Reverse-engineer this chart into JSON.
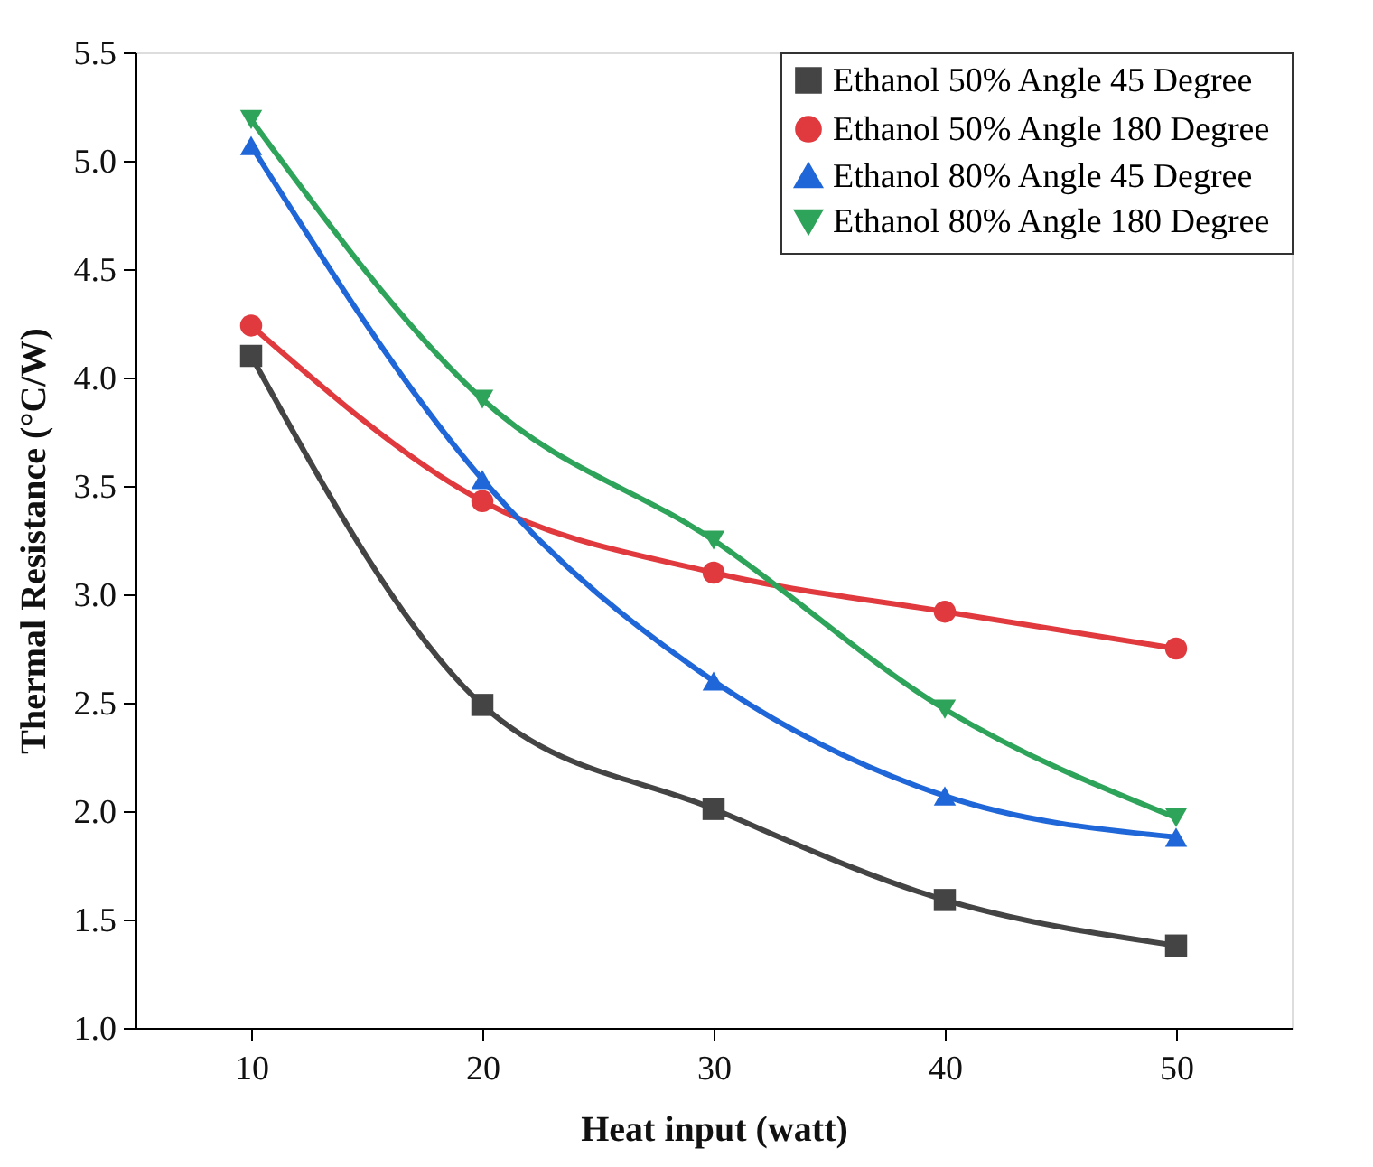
{
  "chart_data": {
    "type": "line",
    "xlabel": "Heat input (watt)",
    "ylabel": "Thermal Resistance (°C/W)",
    "x": [
      10,
      20,
      30,
      40,
      50
    ],
    "xlim": [
      5,
      55
    ],
    "xticks": [
      10,
      20,
      30,
      40,
      50
    ],
    "ylim": [
      1.0,
      5.5
    ],
    "yticks": [
      {
        "value": 1.0,
        "label": "1.0"
      },
      {
        "value": 1.5,
        "label": "1.5"
      },
      {
        "value": 2.0,
        "label": "2.0"
      },
      {
        "value": 2.5,
        "label": "2.5"
      },
      {
        "value": 3.0,
        "label": "3.0"
      },
      {
        "value": 3.5,
        "label": "3.5"
      },
      {
        "value": 4.0,
        "label": "4.0"
      },
      {
        "value": 4.5,
        "label": "4.5"
      },
      {
        "value": 5.0,
        "label": "5.0"
      },
      {
        "value": 5.5,
        "label": "5.5"
      }
    ],
    "grid": false,
    "legend": "top right",
    "line_style": "solid",
    "series": [
      {
        "name": "Ethanol  50% Angle 45 Degree",
        "color": "#444444",
        "marker": "square",
        "values": [
          4.1,
          2.49,
          2.01,
          1.59,
          1.38
        ]
      },
      {
        "name": "Ethanol  50% Angle 180 Degree",
        "color": "#e0393e",
        "marker": "circle",
        "values": [
          4.24,
          3.43,
          3.1,
          2.92,
          2.75
        ]
      },
      {
        "name": "Ethanol  80% Angle 45 Degree",
        "color": "#1f66d8",
        "marker": "triangle",
        "values": [
          5.07,
          3.53,
          2.6,
          2.07,
          1.88
        ]
      },
      {
        "name": "Ethanol  80% Angle 180 Degree",
        "color": "#2ea35a",
        "marker": "triangle_down",
        "values": [
          5.19,
          3.9,
          3.25,
          2.47,
          1.97
        ]
      }
    ]
  }
}
